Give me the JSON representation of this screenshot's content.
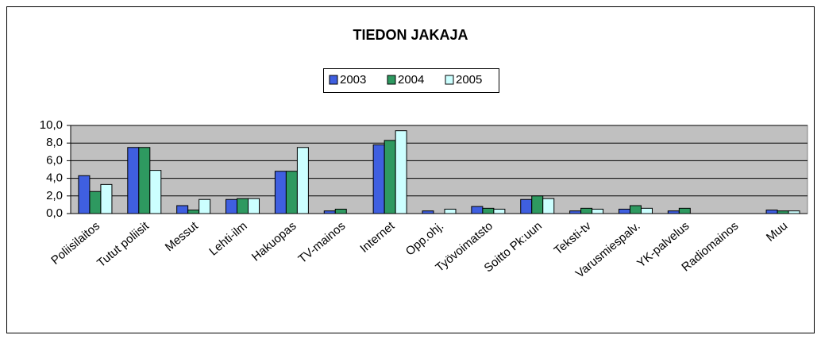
{
  "chart_data": {
    "type": "bar",
    "title": "TIEDON JAKAJA",
    "categories": [
      "Poliisilaitos",
      "Tutut poliisit",
      "Messut",
      "Lehti-ilm",
      "Hakuopas",
      "TV-mainos",
      "Internet",
      "Opp.ohj.",
      "Työvoimatsto",
      "Soitto Pk:uun",
      "Teksti-tv",
      "Varusmiespalv.",
      "YK-palvelus",
      "Radiomainos",
      "Muu"
    ],
    "series": [
      {
        "name": "2003",
        "color": "#3f5fe0",
        "values": [
          4.3,
          7.5,
          0.9,
          1.6,
          4.8,
          0.3,
          7.8,
          0.3,
          0.8,
          1.6,
          0.3,
          0.5,
          0.3,
          0,
          0.4
        ]
      },
      {
        "name": "2004",
        "color": "#2e9960",
        "values": [
          2.5,
          7.5,
          0.4,
          1.7,
          4.8,
          0.5,
          8.3,
          0,
          0.6,
          2.0,
          0.6,
          0.9,
          0.6,
          0,
          0.3
        ]
      },
      {
        "name": "2005",
        "color": "#ccffff",
        "values": [
          3.3,
          4.9,
          1.6,
          1.7,
          7.5,
          0,
          9.4,
          0.5,
          0.5,
          1.7,
          0.5,
          0.6,
          0,
          0,
          0.3
        ]
      }
    ],
    "ylim": [
      0,
      10
    ],
    "yticks": [
      {
        "value": 0,
        "label": "0,0"
      },
      {
        "value": 2,
        "label": "2,0"
      },
      {
        "value": 4,
        "label": "4,0"
      },
      {
        "value": 6,
        "label": "6,0"
      },
      {
        "value": 8,
        "label": "8,0"
      },
      {
        "value": 10,
        "label": "10,0"
      }
    ],
    "grid": true,
    "legend": "top"
  }
}
